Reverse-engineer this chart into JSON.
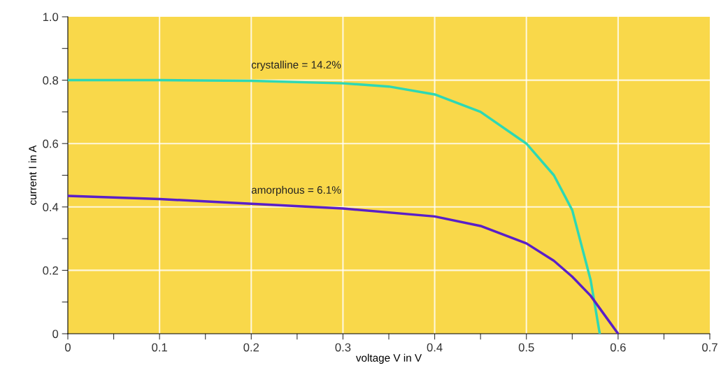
{
  "chart_data": {
    "type": "line",
    "xlabel": "voltage V in V",
    "ylabel": "current I in A",
    "xlim": [
      0,
      0.7
    ],
    "ylim": [
      0,
      1.0
    ],
    "xticks": [
      0,
      {
        "value": 0.05,
        "label": null
      },
      0.1,
      {
        "value": 0.15,
        "label": null
      },
      0.2,
      {
        "value": 0.25,
        "label": null
      },
      0.3,
      {
        "value": 0.35,
        "label": null
      },
      0.4,
      {
        "value": 0.45,
        "label": null
      },
      0.5,
      {
        "value": 0.55,
        "label": null
      },
      0.6,
      {
        "value": 0.65,
        "label": null
      },
      0.7
    ],
    "yticks": [
      0,
      {
        "value": 0.1,
        "label": null
      },
      0.2,
      {
        "value": 0.3,
        "label": null
      },
      0.4,
      {
        "value": 0.5,
        "label": null
      },
      0.6,
      {
        "value": 0.7,
        "label": null
      },
      0.8,
      {
        "value": 0.9,
        "label": null
      },
      {
        "value": 1,
        "label": "1.0"
      }
    ],
    "grid": true,
    "series": [
      {
        "name": "crystalline = 14.2%",
        "color": "#2ed8b4",
        "x": [
          0,
          0.1,
          0.2,
          0.3,
          0.35,
          0.4,
          0.45,
          0.5,
          0.53,
          0.55,
          0.57,
          0.58
        ],
        "values": [
          0.8,
          0.8,
          0.798,
          0.79,
          0.78,
          0.755,
          0.7,
          0.6,
          0.5,
          0.39,
          0.17,
          0
        ]
      },
      {
        "name": "amorphous = 6.1%",
        "color": "#5a1fc8",
        "x": [
          0,
          0.1,
          0.2,
          0.3,
          0.4,
          0.45,
          0.5,
          0.53,
          0.55,
          0.57,
          0.59,
          0.6
        ],
        "values": [
          0.435,
          0.425,
          0.41,
          0.395,
          0.37,
          0.34,
          0.285,
          0.23,
          0.18,
          0.12,
          0.04,
          0
        ]
      }
    ]
  }
}
